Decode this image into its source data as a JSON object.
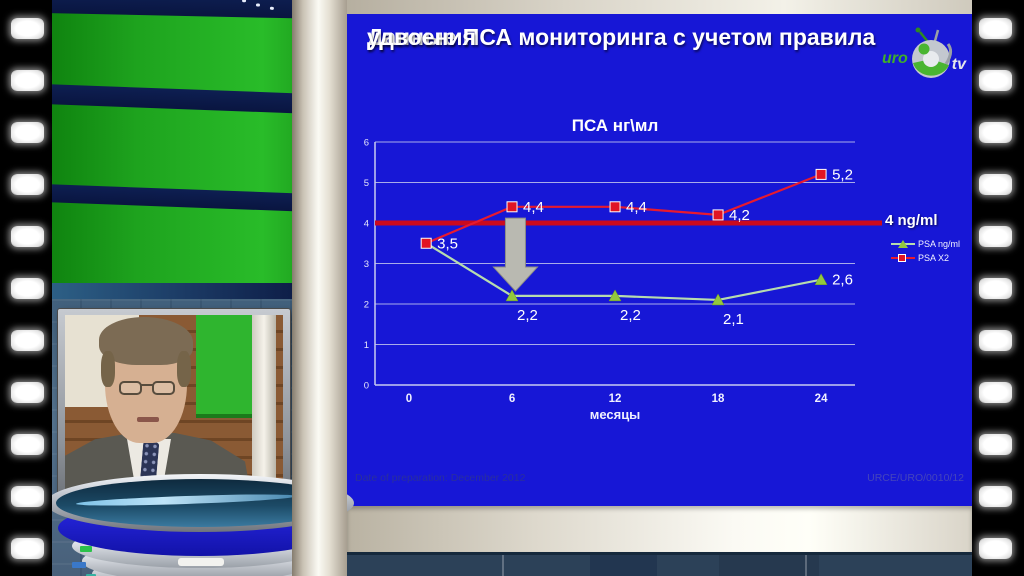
{
  "scene": {
    "logo": {
      "uro": "uro",
      "tv": "tv"
    }
  },
  "slide": {
    "title_lines": [
      "Данные ПСА мониторинга с учетом правила",
      "удвоения"
    ],
    "footer_left": "Date of preparation: December 2012",
    "footer_right": "URCE/URO/0010/12",
    "background_color": "#1717d6"
  },
  "chart_data": {
    "type": "line",
    "title": "ПСА нг\\мл",
    "xlabel": "месяцы",
    "x_ticks": [
      0,
      6,
      12,
      18,
      24
    ],
    "y_ticks": [
      0,
      1,
      2,
      3,
      4,
      5,
      6
    ],
    "ylim": [
      0,
      6
    ],
    "xlim": [
      0,
      24
    ],
    "grid": "horizontal",
    "legend_position": "right",
    "threshold": {
      "value": 4,
      "label": "4 ng/ml",
      "color": "#cc0a1e"
    },
    "series": [
      {
        "name": "PSA ng/ml",
        "color": "#b7dcae",
        "marker": "triangle",
        "marker_color": "#93c83d",
        "skip_first_marker": true,
        "x": [
          1,
          6,
          12,
          18,
          24
        ],
        "values": [
          3.5,
          2.2,
          2.2,
          2.1,
          2.6
        ],
        "labels": [
          "",
          "2,2",
          "2,2",
          "2,1",
          "2,6"
        ],
        "label_side": [
          "",
          "below",
          "below",
          "below",
          "right"
        ]
      },
      {
        "name": "PSA X2",
        "color": "#e81a2e",
        "marker": "square",
        "marker_color": "#e01424",
        "skip_first_marker": false,
        "x": [
          1,
          6,
          12,
          18,
          24
        ],
        "values": [
          3.5,
          4.4,
          4.4,
          4.2,
          5.2
        ],
        "labels": [
          "3,5",
          "4,4",
          "4,4",
          "4,2",
          "5,2"
        ],
        "label_side": [
          "right",
          "right",
          "right",
          "right",
          "right"
        ]
      }
    ],
    "annotation_arrow": {
      "x": 6.2,
      "from": 4.12,
      "to": 2.32,
      "color": "#b9b9b1"
    }
  }
}
